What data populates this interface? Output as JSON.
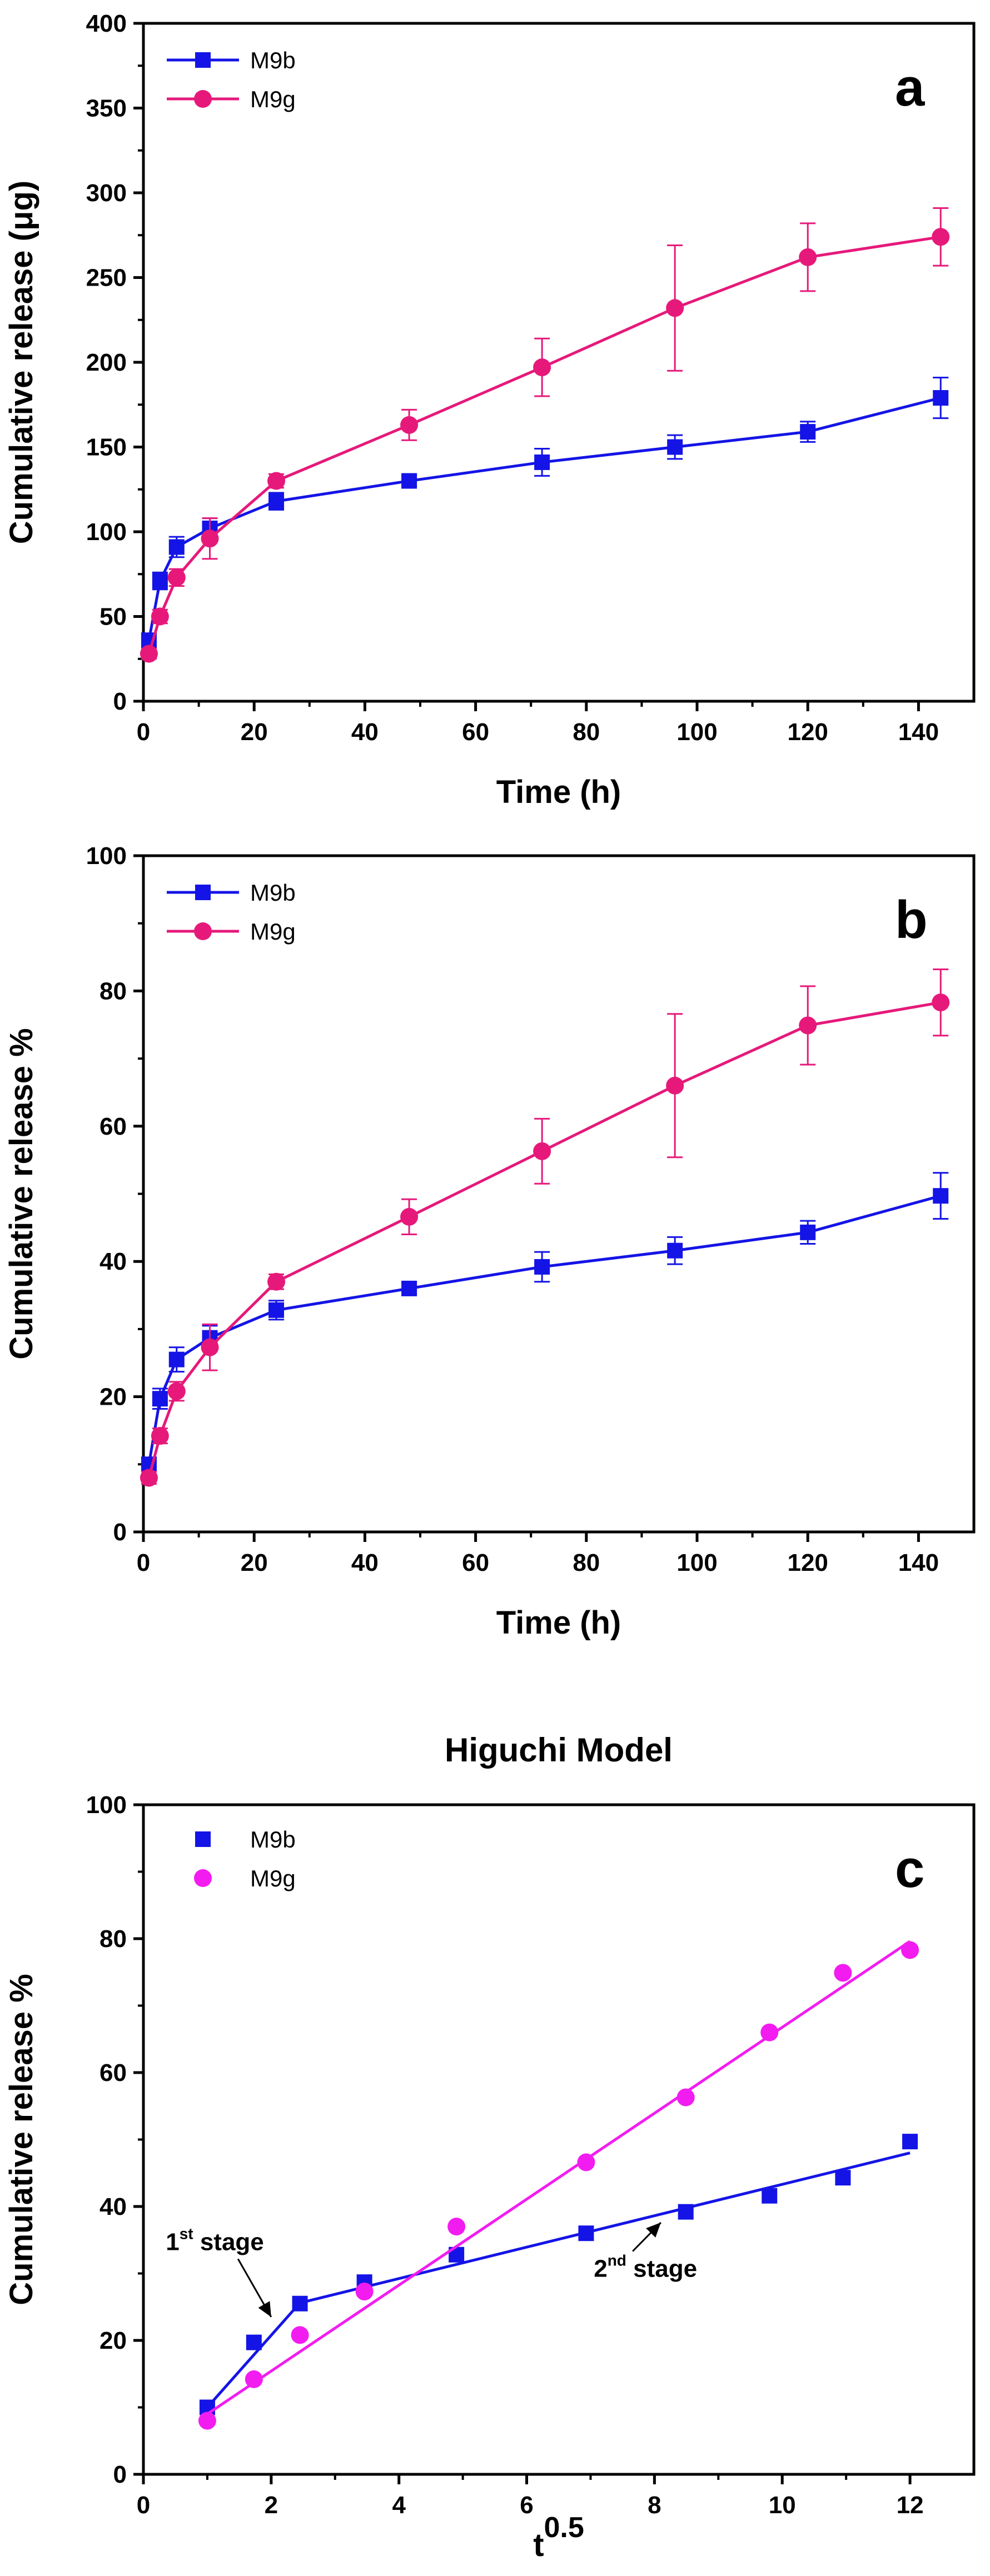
{
  "colors": {
    "blue": "#1414e6",
    "magenta": "#e6197a",
    "magenta_c": "#f21cf0",
    "axis": "#000000"
  },
  "chart_data": [
    {
      "type": "line",
      "panel_letter": "a",
      "title": "",
      "xlabel": "Time (h)",
      "ylabel": "Cumulative release (μg)",
      "xlim": [
        0,
        150
      ],
      "ylim": [
        0,
        400
      ],
      "xticks": [
        0,
        20,
        40,
        60,
        80,
        100,
        120,
        140
      ],
      "yticks": [
        0,
        50,
        100,
        150,
        200,
        250,
        300,
        350,
        400
      ],
      "legend_position": "top-left",
      "series": [
        {
          "name": "M9b",
          "marker": "square",
          "color": "#1414e6",
          "x": [
            1,
            3,
            6,
            12,
            24,
            48,
            72,
            96,
            120,
            144
          ],
          "y": [
            36,
            71,
            91,
            102,
            118,
            130,
            141,
            150,
            159,
            179
          ],
          "err": [
            4,
            5,
            6,
            6,
            5,
            3,
            8,
            7,
            6,
            12
          ]
        },
        {
          "name": "M9g",
          "marker": "circle",
          "color": "#e6197a",
          "x": [
            1,
            3,
            6,
            12,
            24,
            48,
            72,
            96,
            120,
            144
          ],
          "y": [
            28,
            50,
            73,
            96,
            130,
            163,
            197,
            232,
            262,
            274
          ],
          "err": [
            3,
            4,
            5,
            12,
            4,
            9,
            17,
            37,
            20,
            17
          ]
        }
      ]
    },
    {
      "type": "line",
      "panel_letter": "b",
      "title": "",
      "xlabel": "Time (h)",
      "ylabel": "Cumulative release %",
      "xlim": [
        0,
        150
      ],
      "ylim": [
        0,
        100
      ],
      "xticks": [
        0,
        20,
        40,
        60,
        80,
        100,
        120,
        140
      ],
      "yticks": [
        0,
        20,
        40,
        60,
        80,
        100
      ],
      "legend_position": "top-left",
      "series": [
        {
          "name": "M9b",
          "marker": "square",
          "color": "#1414e6",
          "x": [
            1,
            3,
            6,
            12,
            24,
            48,
            72,
            96,
            120,
            144
          ],
          "y": [
            10,
            19.7,
            25.5,
            28.7,
            32.8,
            36,
            39.2,
            41.6,
            44.3,
            49.7
          ],
          "err": [
            1,
            1.5,
            1.8,
            1.8,
            1.4,
            0.9,
            2.2,
            2,
            1.7,
            3.4
          ]
        },
        {
          "name": "M9g",
          "marker": "circle",
          "color": "#e6197a",
          "x": [
            1,
            3,
            6,
            12,
            24,
            48,
            72,
            96,
            120,
            144
          ],
          "y": [
            8,
            14.2,
            20.8,
            27.3,
            37,
            46.6,
            56.3,
            66,
            74.9,
            78.3
          ],
          "err": [
            0.9,
            1.1,
            1.4,
            3.4,
            1.1,
            2.6,
            4.8,
            10.6,
            5.8,
            4.9
          ]
        }
      ]
    },
    {
      "type": "scatter",
      "panel_letter": "c",
      "title": "Higuchi Model",
      "xlabel": "t",
      "xlabel_superscript": "0.5",
      "ylabel": "Cumulative release %",
      "xlim": [
        0,
        13
      ],
      "ylim": [
        0,
        100
      ],
      "xticks": [
        0,
        2,
        4,
        6,
        8,
        10,
        12
      ],
      "yticks": [
        0,
        20,
        40,
        60,
        80,
        100
      ],
      "legend_position": "top-left",
      "series": [
        {
          "name": "M9b",
          "marker": "square",
          "color": "#1414e6",
          "x": [
            1,
            1.73,
            2.45,
            3.46,
            4.9,
            6.93,
            8.49,
            9.8,
            10.95,
            12
          ],
          "y": [
            10,
            19.7,
            25.5,
            28.7,
            32.8,
            36,
            39.2,
            41.6,
            44.3,
            49.7
          ],
          "fit_segments": [
            {
              "x": [
                1,
                2.45
              ],
              "y": [
                10,
                25.6
              ]
            },
            {
              "x": [
                2.45,
                12
              ],
              "y": [
                25.6,
                48
              ]
            }
          ]
        },
        {
          "name": "M9g",
          "marker": "circle",
          "color": "#f21cf0",
          "x": [
            1,
            1.73,
            2.45,
            3.46,
            4.9,
            6.93,
            8.49,
            9.8,
            10.95,
            12
          ],
          "y": [
            8,
            14.2,
            20.8,
            27.3,
            37,
            46.6,
            56.3,
            66,
            74.9,
            78.3
          ],
          "fit_segments": [
            {
              "x": [
                1,
                12
              ],
              "y": [
                9,
                79.6
              ]
            }
          ]
        }
      ],
      "annotations": [
        {
          "base": "1",
          "sup": "st",
          "text": " stage",
          "arrow_to_x": 2.0,
          "arrow_to_y": 23.5,
          "text_x": 0.35,
          "text_y": 33.5
        },
        {
          "base": "2",
          "sup": "nd",
          "text": " stage",
          "arrow_to_x": 8.1,
          "arrow_to_y": 37.6,
          "text_x": 7.05,
          "text_y": 29.5
        }
      ]
    }
  ]
}
